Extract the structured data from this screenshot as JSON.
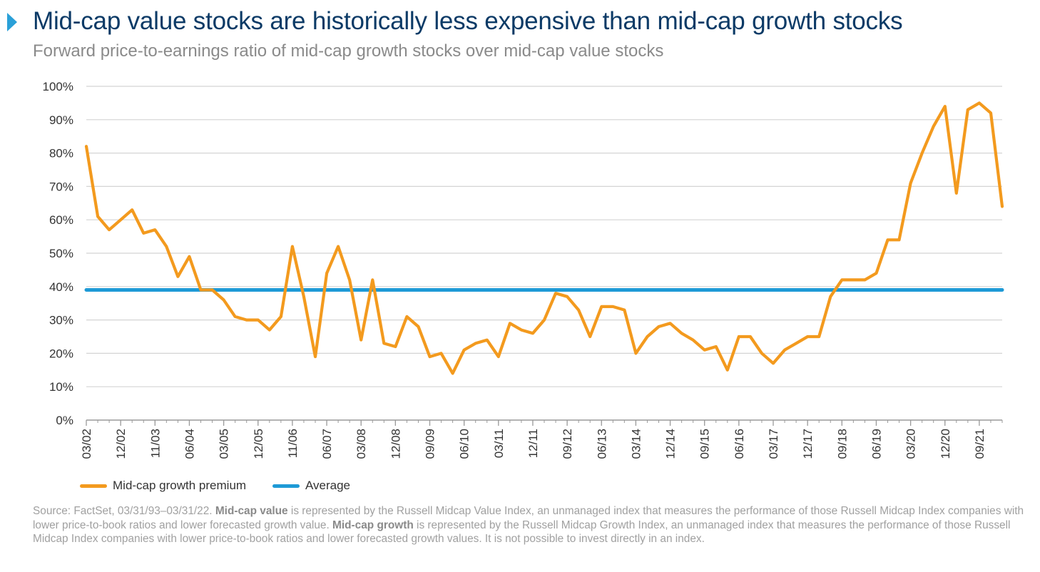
{
  "title": "Mid-cap value stocks are historically less expensive than mid-cap growth stocks",
  "subtitle": "Forward price-to-earnings ratio of mid-cap growth stocks over mid-cap value stocks",
  "colors": {
    "title": "#0b3a66",
    "accent": "#2aa0d8",
    "premium": "#f39a1e",
    "average": "#1e9ad6",
    "grid": "#d4d4d4"
  },
  "icons": {
    "title_marker": "triangle-right-icon"
  },
  "legend": [
    {
      "label": "Mid-cap growth premium",
      "color": "#f39a1e"
    },
    {
      "label": "Average",
      "color": "#1e9ad6"
    }
  ],
  "source": {
    "part1": "Source: FactSet, 03/31/93–03/31/22. ",
    "bold1": "Mid-cap value",
    "part2": " is represented by the Russell Midcap Value Index, an unmanaged index that measures the performance of those Russell Midcap Index companies with lower price-to-book ratios and lower forecasted growth value. ",
    "bold2": "Mid-cap growth",
    "part3": " is represented by the Russell Midcap Growth Index, an unmanaged index that measures the performance of those Russell Midcap Index companies with lower price-to-book ratios and lower forecasted growth values. It is not possible to invest directly in an index."
  },
  "chart_data": {
    "type": "line",
    "ylim": [
      0,
      100
    ],
    "yticks": [
      "0%",
      "10%",
      "20%",
      "30%",
      "40%",
      "50%",
      "60%",
      "70%",
      "80%",
      "90%",
      "100%"
    ],
    "xlabels": [
      "03/02",
      "12/02",
      "11/03",
      "06/04",
      "03/05",
      "12/05",
      "11/06",
      "06/07",
      "03/08",
      "12/08",
      "09/09",
      "06/10",
      "03/11",
      "12/11",
      "09/12",
      "06/13",
      "03/14",
      "12/14",
      "09/15",
      "06/16",
      "03/17",
      "12/17",
      "09/18",
      "06/19",
      "03/20",
      "12/20",
      "09/21"
    ],
    "grid": true,
    "legend_position": "bottom-left",
    "series": [
      {
        "name": "Mid-cap growth premium",
        "values": [
          82,
          61,
          57,
          60,
          63,
          56,
          57,
          52,
          43,
          49,
          39,
          39,
          36,
          31,
          30,
          30,
          27,
          31,
          52,
          37,
          19,
          44,
          52,
          42,
          24,
          42,
          23,
          22,
          31,
          28,
          19,
          20,
          14,
          21,
          23,
          24,
          19,
          29,
          27,
          26,
          30,
          38,
          37,
          33,
          25,
          34,
          34,
          33,
          20,
          25,
          28,
          29,
          26,
          24,
          21,
          22,
          15,
          25,
          25,
          20,
          17,
          21,
          23,
          25,
          25,
          37,
          42,
          42,
          42,
          44,
          54,
          54,
          71,
          80,
          88,
          94,
          68,
          93,
          95,
          92,
          64
        ]
      },
      {
        "name": "Average",
        "values": [
          39,
          39
        ]
      }
    ]
  }
}
